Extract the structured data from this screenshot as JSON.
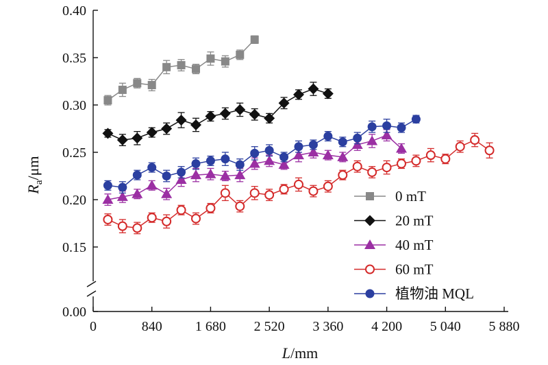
{
  "chart_data": {
    "type": "line",
    "xlabel": {
      "italic": "L",
      "rest": "/mm"
    },
    "ylabel": {
      "italic": "R",
      "sub": "a",
      "rest": "/μm"
    },
    "xlim": [
      0,
      5880
    ],
    "ylim": [
      0.0,
      0.4
    ],
    "y_axis_break": [
      0.0,
      0.15
    ],
    "x_ticks": [
      {
        "value": 0,
        "label": "0"
      },
      {
        "value": 840,
        "label": "840"
      },
      {
        "value": 1680,
        "label": "1 680"
      },
      {
        "value": 2520,
        "label": "2 520"
      },
      {
        "value": 3360,
        "label": "3 360"
      },
      {
        "value": 4200,
        "label": "4 200"
      },
      {
        "value": 5040,
        "label": "5 040"
      },
      {
        "value": 5880,
        "label": "5 880"
      }
    ],
    "y_ticks": [
      {
        "value": 0.0,
        "label": "0.00"
      },
      {
        "value": 0.15,
        "label": "0.15"
      },
      {
        "value": 0.2,
        "label": "0.20"
      },
      {
        "value": 0.25,
        "label": "0.25"
      },
      {
        "value": 0.3,
        "label": "0.30"
      },
      {
        "value": 0.35,
        "label": "0.35"
      },
      {
        "value": 0.4,
        "label": "0.40"
      }
    ],
    "grid": false,
    "legend_position": "bottom-right",
    "series": [
      {
        "name": "0 mT",
        "marker": "square",
        "color": "#888888",
        "x": [
          210,
          420,
          630,
          840,
          1050,
          1260,
          1470,
          1680,
          1890,
          2100,
          2310
        ],
        "y": [
          0.305,
          0.316,
          0.323,
          0.321,
          0.34,
          0.342,
          0.338,
          0.349,
          0.346,
          0.353,
          0.369
        ],
        "err": [
          0.005,
          0.007,
          0.005,
          0.006,
          0.007,
          0.006,
          0.005,
          0.007,
          0.006,
          0.005,
          0.004
        ]
      },
      {
        "name": "20 mT",
        "marker": "diamond",
        "color": "#111111",
        "x": [
          210,
          420,
          630,
          840,
          1050,
          1260,
          1470,
          1680,
          1890,
          2100,
          2310,
          2520,
          2730,
          2940,
          3150,
          3360
        ],
        "y": [
          0.27,
          0.263,
          0.265,
          0.271,
          0.275,
          0.284,
          0.279,
          0.288,
          0.291,
          0.295,
          0.29,
          0.286,
          0.302,
          0.311,
          0.317,
          0.312
        ],
        "err": [
          0.004,
          0.006,
          0.007,
          0.005,
          0.006,
          0.008,
          0.007,
          0.005,
          0.006,
          0.007,
          0.006,
          0.005,
          0.006,
          0.005,
          0.007,
          0.005
        ]
      },
      {
        "name": "40 mT",
        "marker": "triangle",
        "color": "#9b2fa3",
        "x": [
          210,
          420,
          630,
          840,
          1050,
          1260,
          1470,
          1680,
          1890,
          2100,
          2310,
          2520,
          2730,
          2940,
          3150,
          3360,
          3570,
          3780,
          3990,
          4200,
          4410
        ],
        "y": [
          0.2,
          0.203,
          0.206,
          0.215,
          0.206,
          0.221,
          0.226,
          0.227,
          0.225,
          0.226,
          0.238,
          0.241,
          0.237,
          0.247,
          0.25,
          0.247,
          0.245,
          0.258,
          0.262,
          0.268,
          0.254
        ],
        "err": [
          0.006,
          0.006,
          0.005,
          0.005,
          0.006,
          0.007,
          0.007,
          0.006,
          0.005,
          0.007,
          0.006,
          0.006,
          0.005,
          0.007,
          0.006,
          0.005,
          0.005,
          0.006,
          0.007,
          0.006,
          0.005
        ]
      },
      {
        "name": "60 mT",
        "marker": "open-circle",
        "color": "#d42a2a",
        "x": [
          210,
          420,
          630,
          840,
          1050,
          1260,
          1470,
          1680,
          1890,
          2100,
          2310,
          2520,
          2730,
          2940,
          3150,
          3360,
          3570,
          3780,
          3990,
          4200,
          4410,
          4620,
          4830,
          5040,
          5250,
          5460,
          5670
        ],
        "y": [
          0.179,
          0.172,
          0.17,
          0.181,
          0.177,
          0.189,
          0.18,
          0.191,
          0.207,
          0.193,
          0.207,
          0.205,
          0.211,
          0.216,
          0.209,
          0.214,
          0.226,
          0.235,
          0.229,
          0.234,
          0.238,
          0.241,
          0.247,
          0.243,
          0.256,
          0.263,
          0.252
        ],
        "err": [
          0.006,
          0.007,
          0.006,
          0.005,
          0.007,
          0.005,
          0.006,
          0.005,
          0.008,
          0.006,
          0.007,
          0.006,
          0.005,
          0.007,
          0.006,
          0.006,
          0.005,
          0.006,
          0.006,
          0.007,
          0.005,
          0.006,
          0.007,
          0.005,
          0.006,
          0.007,
          0.008
        ]
      },
      {
        "name": "植物油 MQL",
        "marker": "circle",
        "color": "#2b3fa0",
        "x": [
          210,
          420,
          630,
          840,
          1050,
          1260,
          1470,
          1680,
          1890,
          2100,
          2310,
          2520,
          2730,
          2940,
          3150,
          3360,
          3570,
          3780,
          3990,
          4200,
          4410,
          4620
        ],
        "y": [
          0.215,
          0.213,
          0.226,
          0.234,
          0.225,
          0.229,
          0.238,
          0.241,
          0.243,
          0.237,
          0.249,
          0.252,
          0.245,
          0.256,
          0.258,
          0.267,
          0.261,
          0.265,
          0.277,
          0.278,
          0.276,
          0.285
        ],
        "err": [
          0.005,
          0.006,
          0.005,
          0.005,
          0.006,
          0.006,
          0.006,
          0.005,
          0.007,
          0.006,
          0.007,
          0.006,
          0.005,
          0.006,
          0.005,
          0.005,
          0.005,
          0.006,
          0.006,
          0.007,
          0.005,
          0.004
        ]
      }
    ]
  }
}
